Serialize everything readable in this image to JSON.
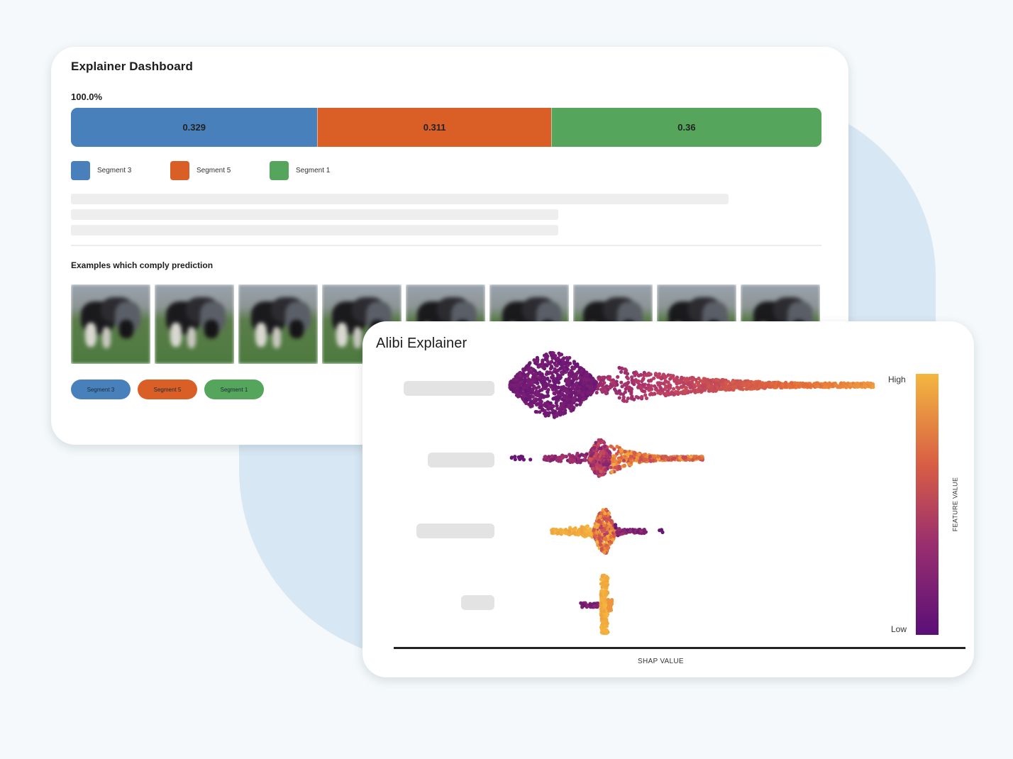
{
  "dashboard": {
    "title": "Explainer Dashboard",
    "total_label": "100.0%",
    "bar_segments": [
      {
        "value": 0.329,
        "label": "0.329",
        "color": "#4880bc"
      },
      {
        "value": 0.311,
        "label": "0.311",
        "color": "#d95f27"
      },
      {
        "value": 0.36,
        "label": "0.36",
        "color": "#55a55c"
      }
    ],
    "legend": [
      {
        "label": "Segment 3",
        "color": "#4880bc"
      },
      {
        "label": "Segment 5",
        "color": "#d95f27"
      },
      {
        "label": "Segment 1",
        "color": "#55a55c"
      }
    ],
    "examples_title": "Examples which comply prediction",
    "pills": [
      {
        "label": "Segment 3",
        "color": "#4880bc"
      },
      {
        "label": "Segment 5",
        "color": "#d95f27"
      },
      {
        "label": "Segment 1",
        "color": "#55a55c"
      }
    ]
  },
  "alibi": {
    "title": "Alibi Explainer",
    "colorbar_high": "High",
    "colorbar_low": "Low",
    "colorbar_axis": "FEATURE VALUE",
    "x_axis": "SHAP VALUE",
    "colormap": [
      "#5a0f78",
      "#b53a68",
      "#e46d3a",
      "#f4b73f"
    ]
  }
}
